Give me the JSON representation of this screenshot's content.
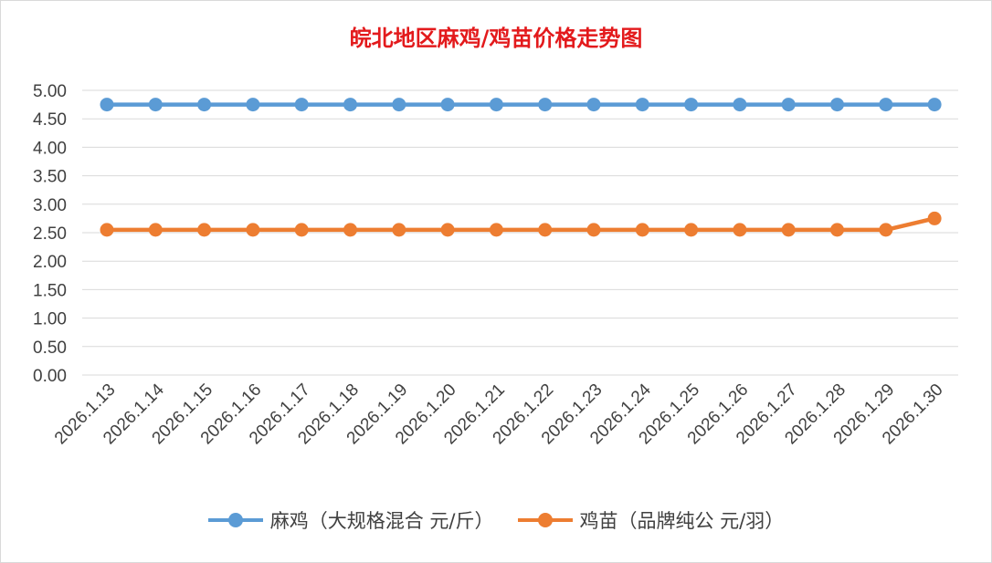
{
  "chart_data": {
    "type": "line",
    "title": "皖北地区麻鸡/鸡苗价格走势图",
    "xlabel": "",
    "ylabel": "",
    "categories": [
      "2026.1.13",
      "2026.1.14",
      "2026.1.15",
      "2026.1.16",
      "2026.1.17",
      "2026.1.18",
      "2026.1.19",
      "2026.1.20",
      "2026.1.21",
      "2026.1.22",
      "2026.1.23",
      "2026.1.24",
      "2026.1.25",
      "2026.1.26",
      "2026.1.27",
      "2026.1.28",
      "2026.1.29",
      "2026.1.30"
    ],
    "yticks": [
      "0.00",
      "0.50",
      "1.00",
      "1.50",
      "2.00",
      "2.50",
      "3.00",
      "3.50",
      "4.00",
      "4.50",
      "5.00"
    ],
    "ylim": [
      0,
      5
    ],
    "grid": true,
    "legend_position": "bottom",
    "series": [
      {
        "name": "麻鸡（大规格混合 元/斤）",
        "color": "#5b9bd5",
        "values": [
          4.75,
          4.75,
          4.75,
          4.75,
          4.75,
          4.75,
          4.75,
          4.75,
          4.75,
          4.75,
          4.75,
          4.75,
          4.75,
          4.75,
          4.75,
          4.75,
          4.75,
          4.75
        ]
      },
      {
        "name": "鸡苗（品牌纯公 元/羽）",
        "color": "#ed7d31",
        "values": [
          2.55,
          2.55,
          2.55,
          2.55,
          2.55,
          2.55,
          2.55,
          2.55,
          2.55,
          2.55,
          2.55,
          2.55,
          2.55,
          2.55,
          2.55,
          2.55,
          2.55,
          2.75
        ]
      }
    ]
  }
}
